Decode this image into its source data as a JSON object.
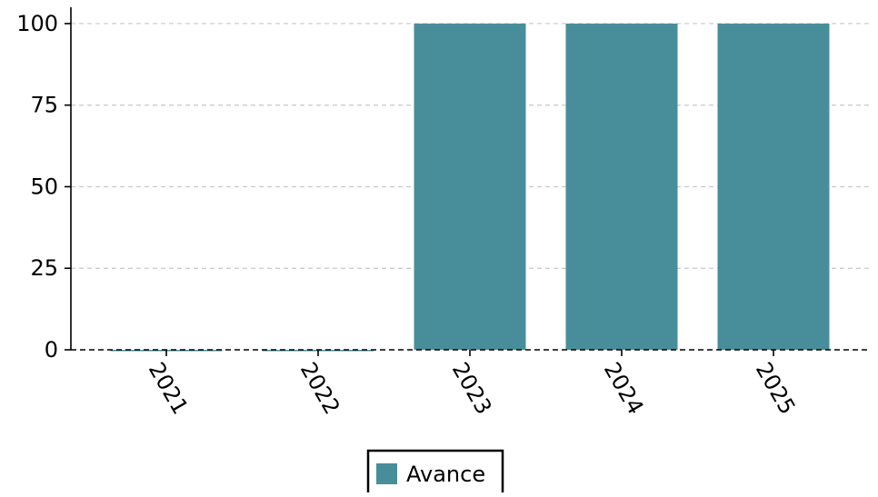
{
  "chart_data": {
    "type": "bar",
    "categories": [
      "2021",
      "2022",
      "2023",
      "2024",
      "2025"
    ],
    "series": [
      {
        "name": "Avance",
        "values": [
          0,
          0,
          100,
          100,
          100
        ],
        "color": "#478e9a"
      }
    ],
    "yticks": [
      "0",
      "25",
      "50",
      "75",
      "100"
    ],
    "ylim": [
      0,
      105
    ],
    "grid": true,
    "grid_style": "dashed",
    "legend_position": "bottom-center",
    "title": "",
    "xlabel": "",
    "ylabel": ""
  }
}
